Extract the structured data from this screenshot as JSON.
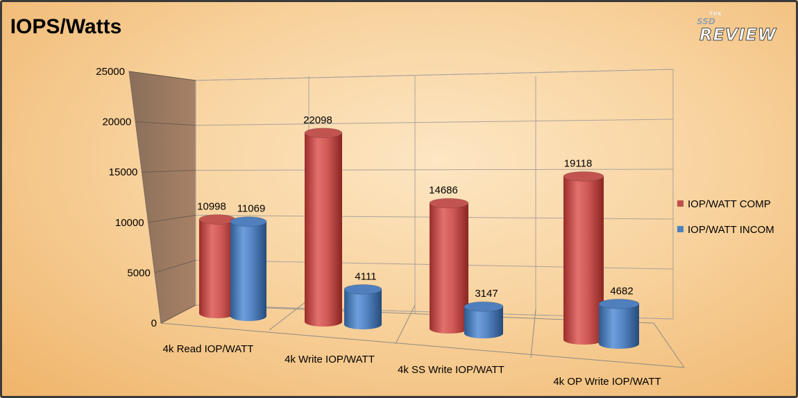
{
  "chart_data": {
    "type": "bar",
    "title": "IOPS/Watts",
    "categories": [
      "4k Read IOP/WATT",
      "4k Write IOP/WATT",
      "4k SS Write IOP/WATT",
      "4k OP Write IOP/WATT"
    ],
    "series": [
      {
        "name": "IOP/WATT COMP",
        "color": "#c0504d",
        "values": [
          10998,
          22098,
          14686,
          19118
        ],
        "labels": [
          "10998",
          "22098",
          "14686",
          "19118"
        ]
      },
      {
        "name": "IOP/WATT INCOM",
        "color": "#4f81bd",
        "values": [
          11069,
          4111,
          3147,
          4682
        ],
        "labels": [
          "11069",
          "4111",
          "3147",
          "4682"
        ]
      }
    ],
    "y_ticks": [
      "0",
      "5000",
      "10000",
      "15000",
      "20000",
      "25000"
    ],
    "ylim": [
      0,
      25000
    ],
    "grid": true,
    "legend_position": "right",
    "style": "3d-cylinder"
  },
  "logo": {
    "top": "THE",
    "mid": "SSD",
    "big": "REVIEW"
  }
}
